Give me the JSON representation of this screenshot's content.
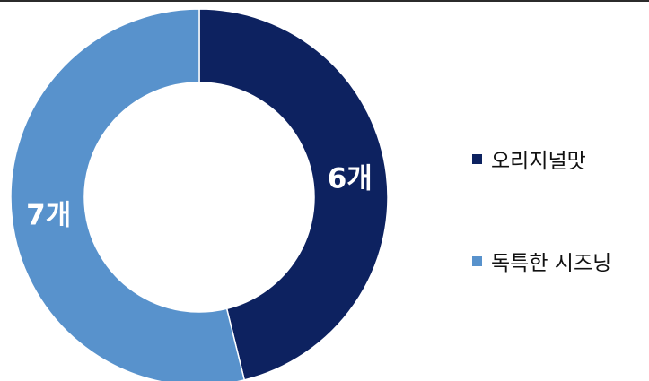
{
  "chart_data": {
    "type": "pie",
    "donut": true,
    "title": "",
    "categories": [
      "오리지널맛",
      "독특한 시즈닝"
    ],
    "values": [
      6,
      7
    ],
    "value_labels": [
      "6개",
      "7개"
    ],
    "colors": [
      "#0d2260",
      "#5892cc"
    ],
    "legend_position": "right",
    "start_angle_deg": 0,
    "direction": "clockwise"
  }
}
